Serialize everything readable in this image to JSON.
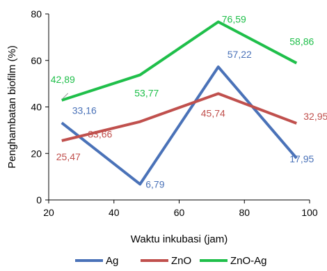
{
  "chart_data": {
    "type": "line",
    "xlabel": "Waktu inkubasi (jam)",
    "ylabel": "Penghambatan biofilm (%)",
    "xlim": [
      20,
      100
    ],
    "ylim": [
      0,
      80
    ],
    "xticks": [
      "20",
      "40",
      "60",
      "80",
      "100"
    ],
    "yticks": [
      "0",
      "20",
      "40",
      "60",
      "80"
    ],
    "grid": false,
    "legend_position": "bottom",
    "x": [
      24,
      48,
      72,
      96
    ],
    "series": [
      {
        "name": "Ag",
        "color": "#4a72b8",
        "values": [
          33.16,
          6.79,
          57.22,
          17.95
        ],
        "labels": [
          "33,16",
          "6,79",
          "57,22",
          "17,95"
        ]
      },
      {
        "name": "ZnO",
        "color": "#c0504d",
        "values": [
          25.47,
          33.66,
          45.74,
          32.95
        ],
        "labels": [
          "25,47",
          "33,66",
          "45,74",
          "32,95"
        ]
      },
      {
        "name": "ZnO-Ag",
        "color": "#1fbf4a",
        "values": [
          42.89,
          53.77,
          76.59,
          58.86
        ],
        "labels": [
          "42,89",
          "53,77",
          "76,59",
          "58,86"
        ]
      }
    ]
  }
}
